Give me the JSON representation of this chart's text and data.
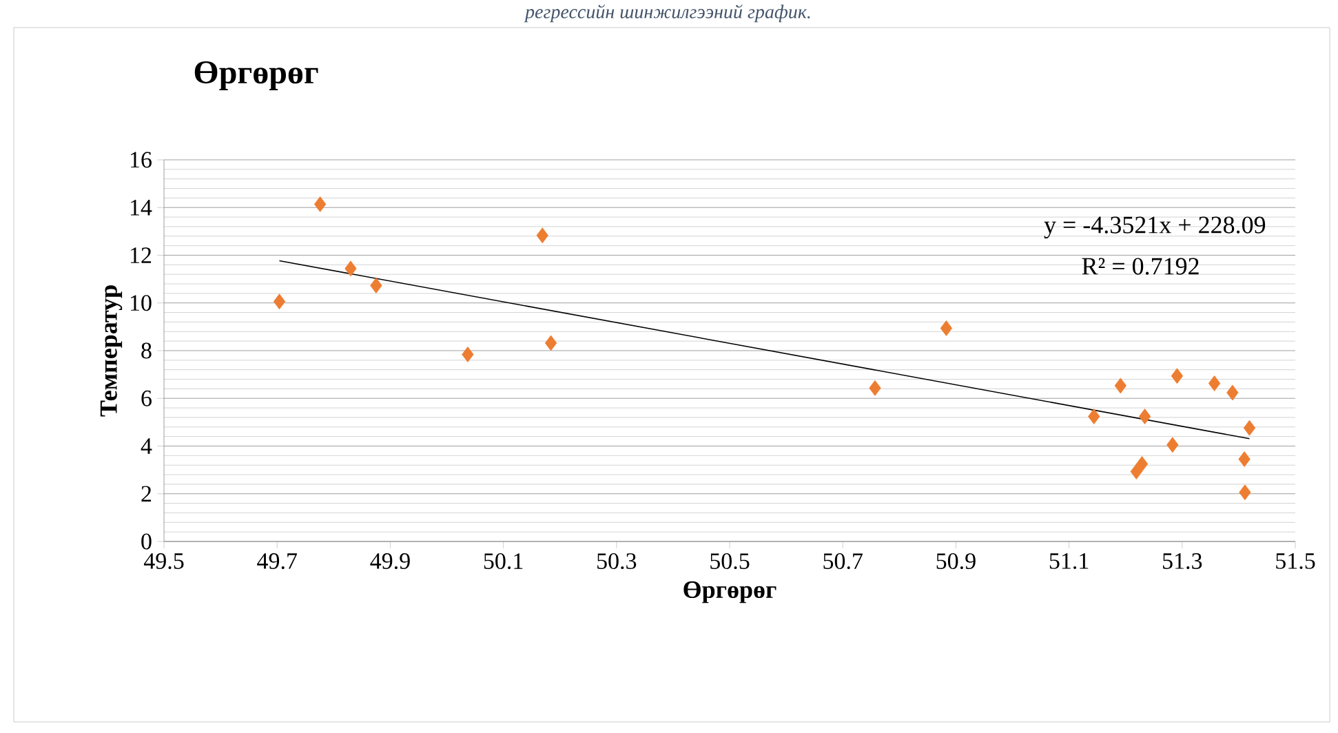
{
  "chart_data": {
    "type": "scatter",
    "title": "Өргөрөг",
    "xlabel": "Өргөрөг",
    "ylabel": "Температур",
    "annotations": [
      "y = -4.3521x + 228.09",
      "R² = 0.7192",
      "регрессийн шинжилгээний график."
    ],
    "series": [
      {
        "color": "#ed7d31",
        "marker": "diamond",
        "x": [
          49.704,
          49.776,
          49.83,
          49.875,
          50.037,
          50.169,
          50.184,
          50.757,
          50.883,
          51.144,
          51.191,
          51.219,
          51.229,
          51.234,
          51.283,
          51.291,
          51.357,
          51.389,
          51.411,
          51.41,
          51.419
        ],
        "values": [
          10.06,
          14.14,
          11.44,
          10.73,
          7.84,
          12.83,
          8.32,
          6.43,
          8.94,
          5.24,
          6.53,
          2.93,
          3.25,
          5.24,
          4.05,
          6.94,
          6.63,
          6.24,
          2.06,
          3.45,
          4.76
        ]
      },
      {
        "type": "line",
        "color": "#000000",
        "marker": "none",
        "x": [
          49.704,
          51.419
        ],
        "values": [
          11.77,
          4.31
        ]
      }
    ],
    "xlim": [
      49.5,
      51.5
    ],
    "xticks": [
      49.5,
      49.7,
      49.9,
      50.1,
      50.3,
      50.5,
      50.7,
      50.9,
      51.1,
      51.3,
      51.5
    ],
    "ylim": [
      0,
      16
    ],
    "yticks": [
      0,
      2,
      4,
      6,
      8,
      10,
      12,
      14,
      16
    ],
    "grid": "y"
  }
}
